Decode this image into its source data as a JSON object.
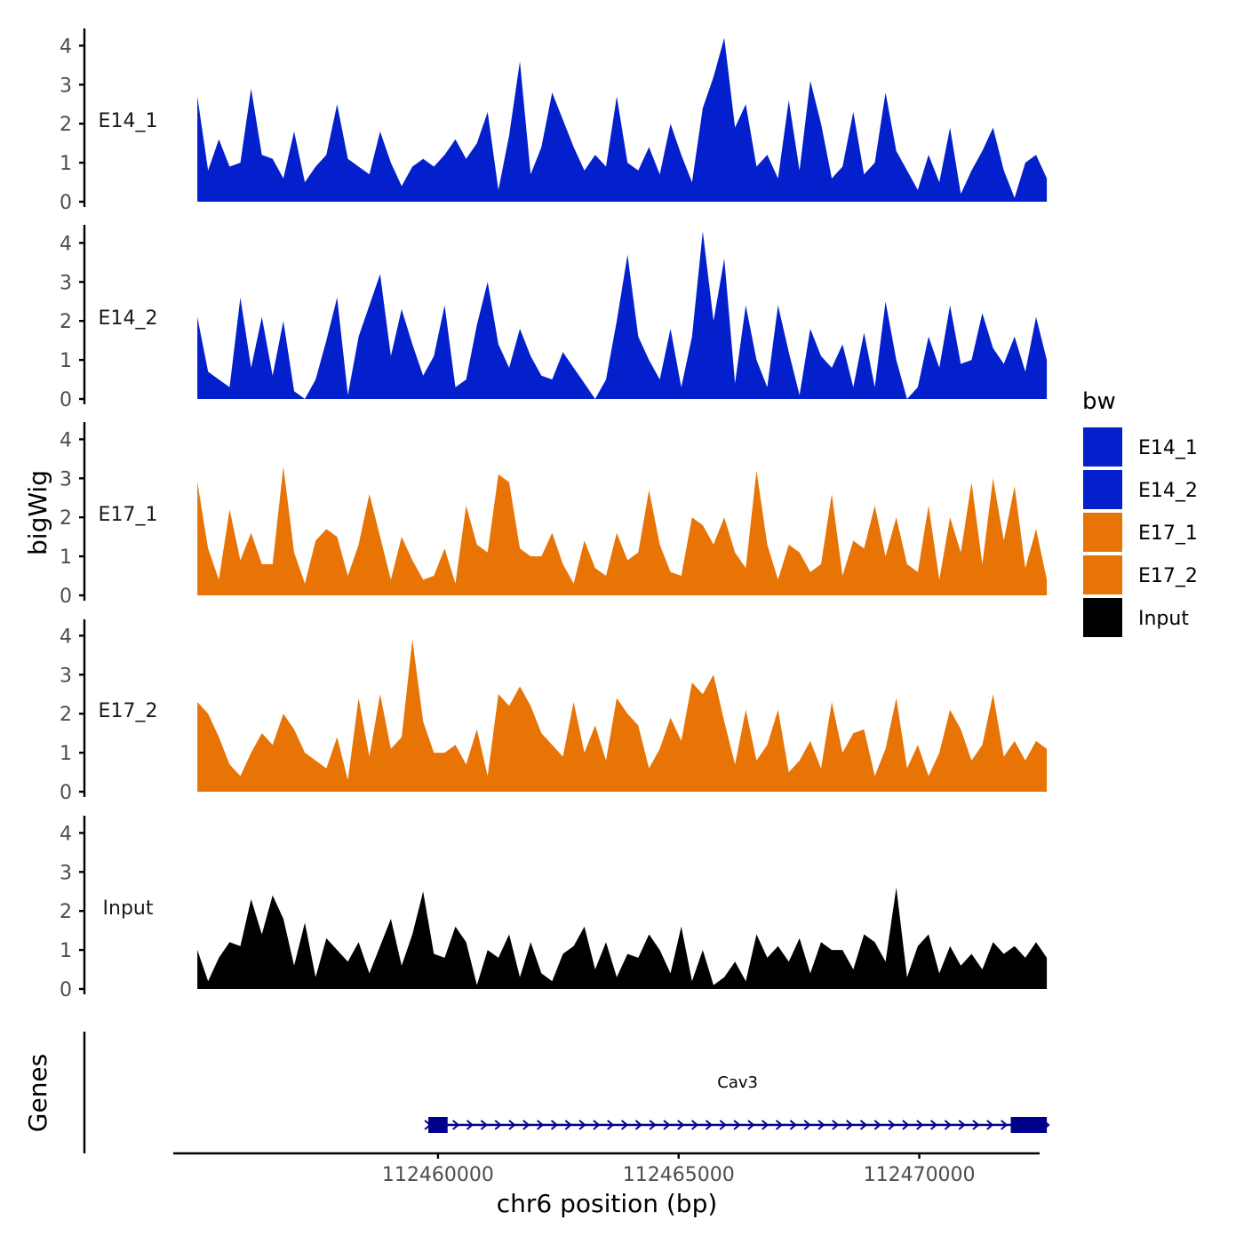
{
  "chart_data": {
    "type": "area",
    "x_axis": {
      "title": "chr6 position (bp)",
      "range": [
        112454500,
        112472500
      ],
      "ticks": [
        112460000,
        112465000,
        112470000
      ],
      "tick_labels": [
        "112460000",
        "112465000",
        "112470000"
      ]
    },
    "y_axis": {
      "title": "bigWig",
      "range": [
        0,
        4.5
      ],
      "ticks": [
        0,
        1,
        2,
        3,
        4
      ],
      "tick_labels": [
        "0",
        "1",
        "2",
        "3",
        "4"
      ]
    },
    "data_range": [
      112455000,
      112472650
    ],
    "legend": {
      "title": "bw",
      "position": "right",
      "entries": [
        {
          "label": "E14_1",
          "color": "#0320CC"
        },
        {
          "label": "E14_2",
          "color": "#0320CC"
        },
        {
          "label": "E17_1",
          "color": "#E87405"
        },
        {
          "label": "E17_2",
          "color": "#E87405"
        },
        {
          "label": "Input",
          "color": "#000000"
        }
      ]
    },
    "series": [
      {
        "name": "E14_1",
        "color": "#0320CC",
        "values": [
          2.7,
          0.8,
          1.6,
          0.9,
          1.0,
          2.9,
          1.2,
          1.1,
          0.6,
          1.8,
          0.5,
          0.9,
          1.2,
          2.5,
          1.1,
          0.9,
          0.7,
          1.8,
          1.0,
          0.4,
          0.9,
          1.1,
          0.9,
          1.2,
          1.6,
          1.1,
          1.5,
          2.3,
          0.3,
          1.7,
          3.6,
          0.7,
          1.4,
          2.8,
          2.1,
          1.4,
          0.8,
          1.2,
          0.9,
          2.7,
          1.0,
          0.8,
          1.4,
          0.7,
          2.0,
          1.2,
          0.5,
          2.4,
          3.2,
          4.2,
          1.9,
          2.5,
          0.9,
          1.2,
          0.6,
          2.6,
          0.8,
          3.1,
          2.0,
          0.6,
          0.9,
          2.3,
          0.7,
          1.0,
          2.8,
          1.3,
          0.8,
          0.3,
          1.2,
          0.5,
          1.9,
          0.2,
          0.8,
          1.3,
          1.9,
          0.8,
          0.1,
          1.0,
          1.2,
          0.6
        ]
      },
      {
        "name": "E14_2",
        "color": "#0320CC",
        "values": [
          2.1,
          0.7,
          0.5,
          0.3,
          2.6,
          0.8,
          2.1,
          0.6,
          2.0,
          0.2,
          0.0,
          0.5,
          1.5,
          2.6,
          0.1,
          1.6,
          2.4,
          3.2,
          1.1,
          2.3,
          1.4,
          0.6,
          1.1,
          2.4,
          0.3,
          0.5,
          1.9,
          3.0,
          1.4,
          0.8,
          1.8,
          1.1,
          0.6,
          0.5,
          1.2,
          0.8,
          0.4,
          0.0,
          0.5,
          2.0,
          3.7,
          1.6,
          1.0,
          0.5,
          1.8,
          0.3,
          1.6,
          4.3,
          2.0,
          3.6,
          0.4,
          2.4,
          1.0,
          0.3,
          2.4,
          1.2,
          0.1,
          1.8,
          1.1,
          0.8,
          1.4,
          0.3,
          1.7,
          0.3,
          2.5,
          1.0,
          0.0,
          0.3,
          1.6,
          0.8,
          2.4,
          0.9,
          1.0,
          2.2,
          1.3,
          0.9,
          1.6,
          0.7,
          2.1,
          1.0
        ]
      },
      {
        "name": "E17_1",
        "color": "#E87405",
        "values": [
          2.9,
          1.2,
          0.4,
          2.2,
          0.9,
          1.6,
          0.8,
          0.8,
          3.3,
          1.1,
          0.3,
          1.4,
          1.7,
          1.5,
          0.5,
          1.3,
          2.6,
          1.5,
          0.4,
          1.5,
          0.9,
          0.4,
          0.5,
          1.2,
          0.3,
          2.3,
          1.3,
          1.1,
          3.1,
          2.9,
          1.2,
          1.0,
          1.0,
          1.6,
          0.8,
          0.3,
          1.4,
          0.7,
          0.5,
          1.6,
          0.9,
          1.1,
          2.7,
          1.3,
          0.6,
          0.5,
          2.0,
          1.8,
          1.3,
          2.0,
          1.1,
          0.7,
          3.2,
          1.3,
          0.4,
          1.3,
          1.1,
          0.6,
          0.8,
          2.6,
          0.5,
          1.4,
          1.2,
          2.3,
          1.0,
          2.0,
          0.8,
          0.6,
          2.3,
          0.4,
          2.0,
          1.1,
          2.9,
          0.8,
          3.0,
          1.4,
          2.8,
          0.7,
          1.7,
          0.4
        ]
      },
      {
        "name": "E17_2",
        "color": "#E87405",
        "values": [
          2.3,
          2.0,
          1.4,
          0.7,
          0.4,
          1.0,
          1.5,
          1.2,
          2.0,
          1.6,
          1.0,
          0.8,
          0.6,
          1.4,
          0.3,
          2.4,
          0.9,
          2.5,
          1.1,
          1.4,
          3.9,
          1.8,
          1.0,
          1.0,
          1.2,
          0.7,
          1.6,
          0.4,
          2.5,
          2.2,
          2.7,
          2.2,
          1.5,
          1.2,
          0.9,
          2.3,
          1.0,
          1.7,
          0.8,
          2.4,
          2.0,
          1.7,
          0.6,
          1.1,
          1.9,
          1.3,
          2.8,
          2.5,
          3.0,
          1.8,
          0.7,
          2.1,
          0.8,
          1.2,
          2.1,
          0.5,
          0.8,
          1.3,
          0.6,
          2.3,
          1.0,
          1.5,
          1.6,
          0.4,
          1.1,
          2.4,
          0.6,
          1.2,
          0.4,
          1.0,
          2.1,
          1.6,
          0.8,
          1.2,
          2.5,
          0.9,
          1.3,
          0.8,
          1.3,
          1.1
        ]
      },
      {
        "name": "Input",
        "color": "#000000",
        "values": [
          1.0,
          0.2,
          0.8,
          1.2,
          1.1,
          2.3,
          1.4,
          2.4,
          1.8,
          0.6,
          1.7,
          0.3,
          1.3,
          1.0,
          0.7,
          1.2,
          0.4,
          1.1,
          1.8,
          0.6,
          1.4,
          2.5,
          0.9,
          0.8,
          1.6,
          1.2,
          0.1,
          1.0,
          0.8,
          1.4,
          0.3,
          1.2,
          0.4,
          0.2,
          0.9,
          1.1,
          1.6,
          0.5,
          1.2,
          0.3,
          0.9,
          0.8,
          1.4,
          1.0,
          0.4,
          1.6,
          0.2,
          1.0,
          0.1,
          0.3,
          0.7,
          0.2,
          1.4,
          0.8,
          1.1,
          0.7,
          1.3,
          0.4,
          1.2,
          1.0,
          1.0,
          0.5,
          1.4,
          1.2,
          0.7,
          2.6,
          0.3,
          1.1,
          1.4,
          0.4,
          1.1,
          0.6,
          0.9,
          0.5,
          1.2,
          0.9,
          1.1,
          0.8,
          1.2,
          0.8
        ]
      }
    ],
    "gene_track": {
      "label": "Genes",
      "gene_name": "Cav3",
      "gene_start": 112459800,
      "gene_end": 112472650,
      "strand": "+",
      "exons": [
        [
          112459800,
          112460200
        ],
        [
          112471900,
          112472650
        ]
      ],
      "color": "#00008B"
    }
  }
}
